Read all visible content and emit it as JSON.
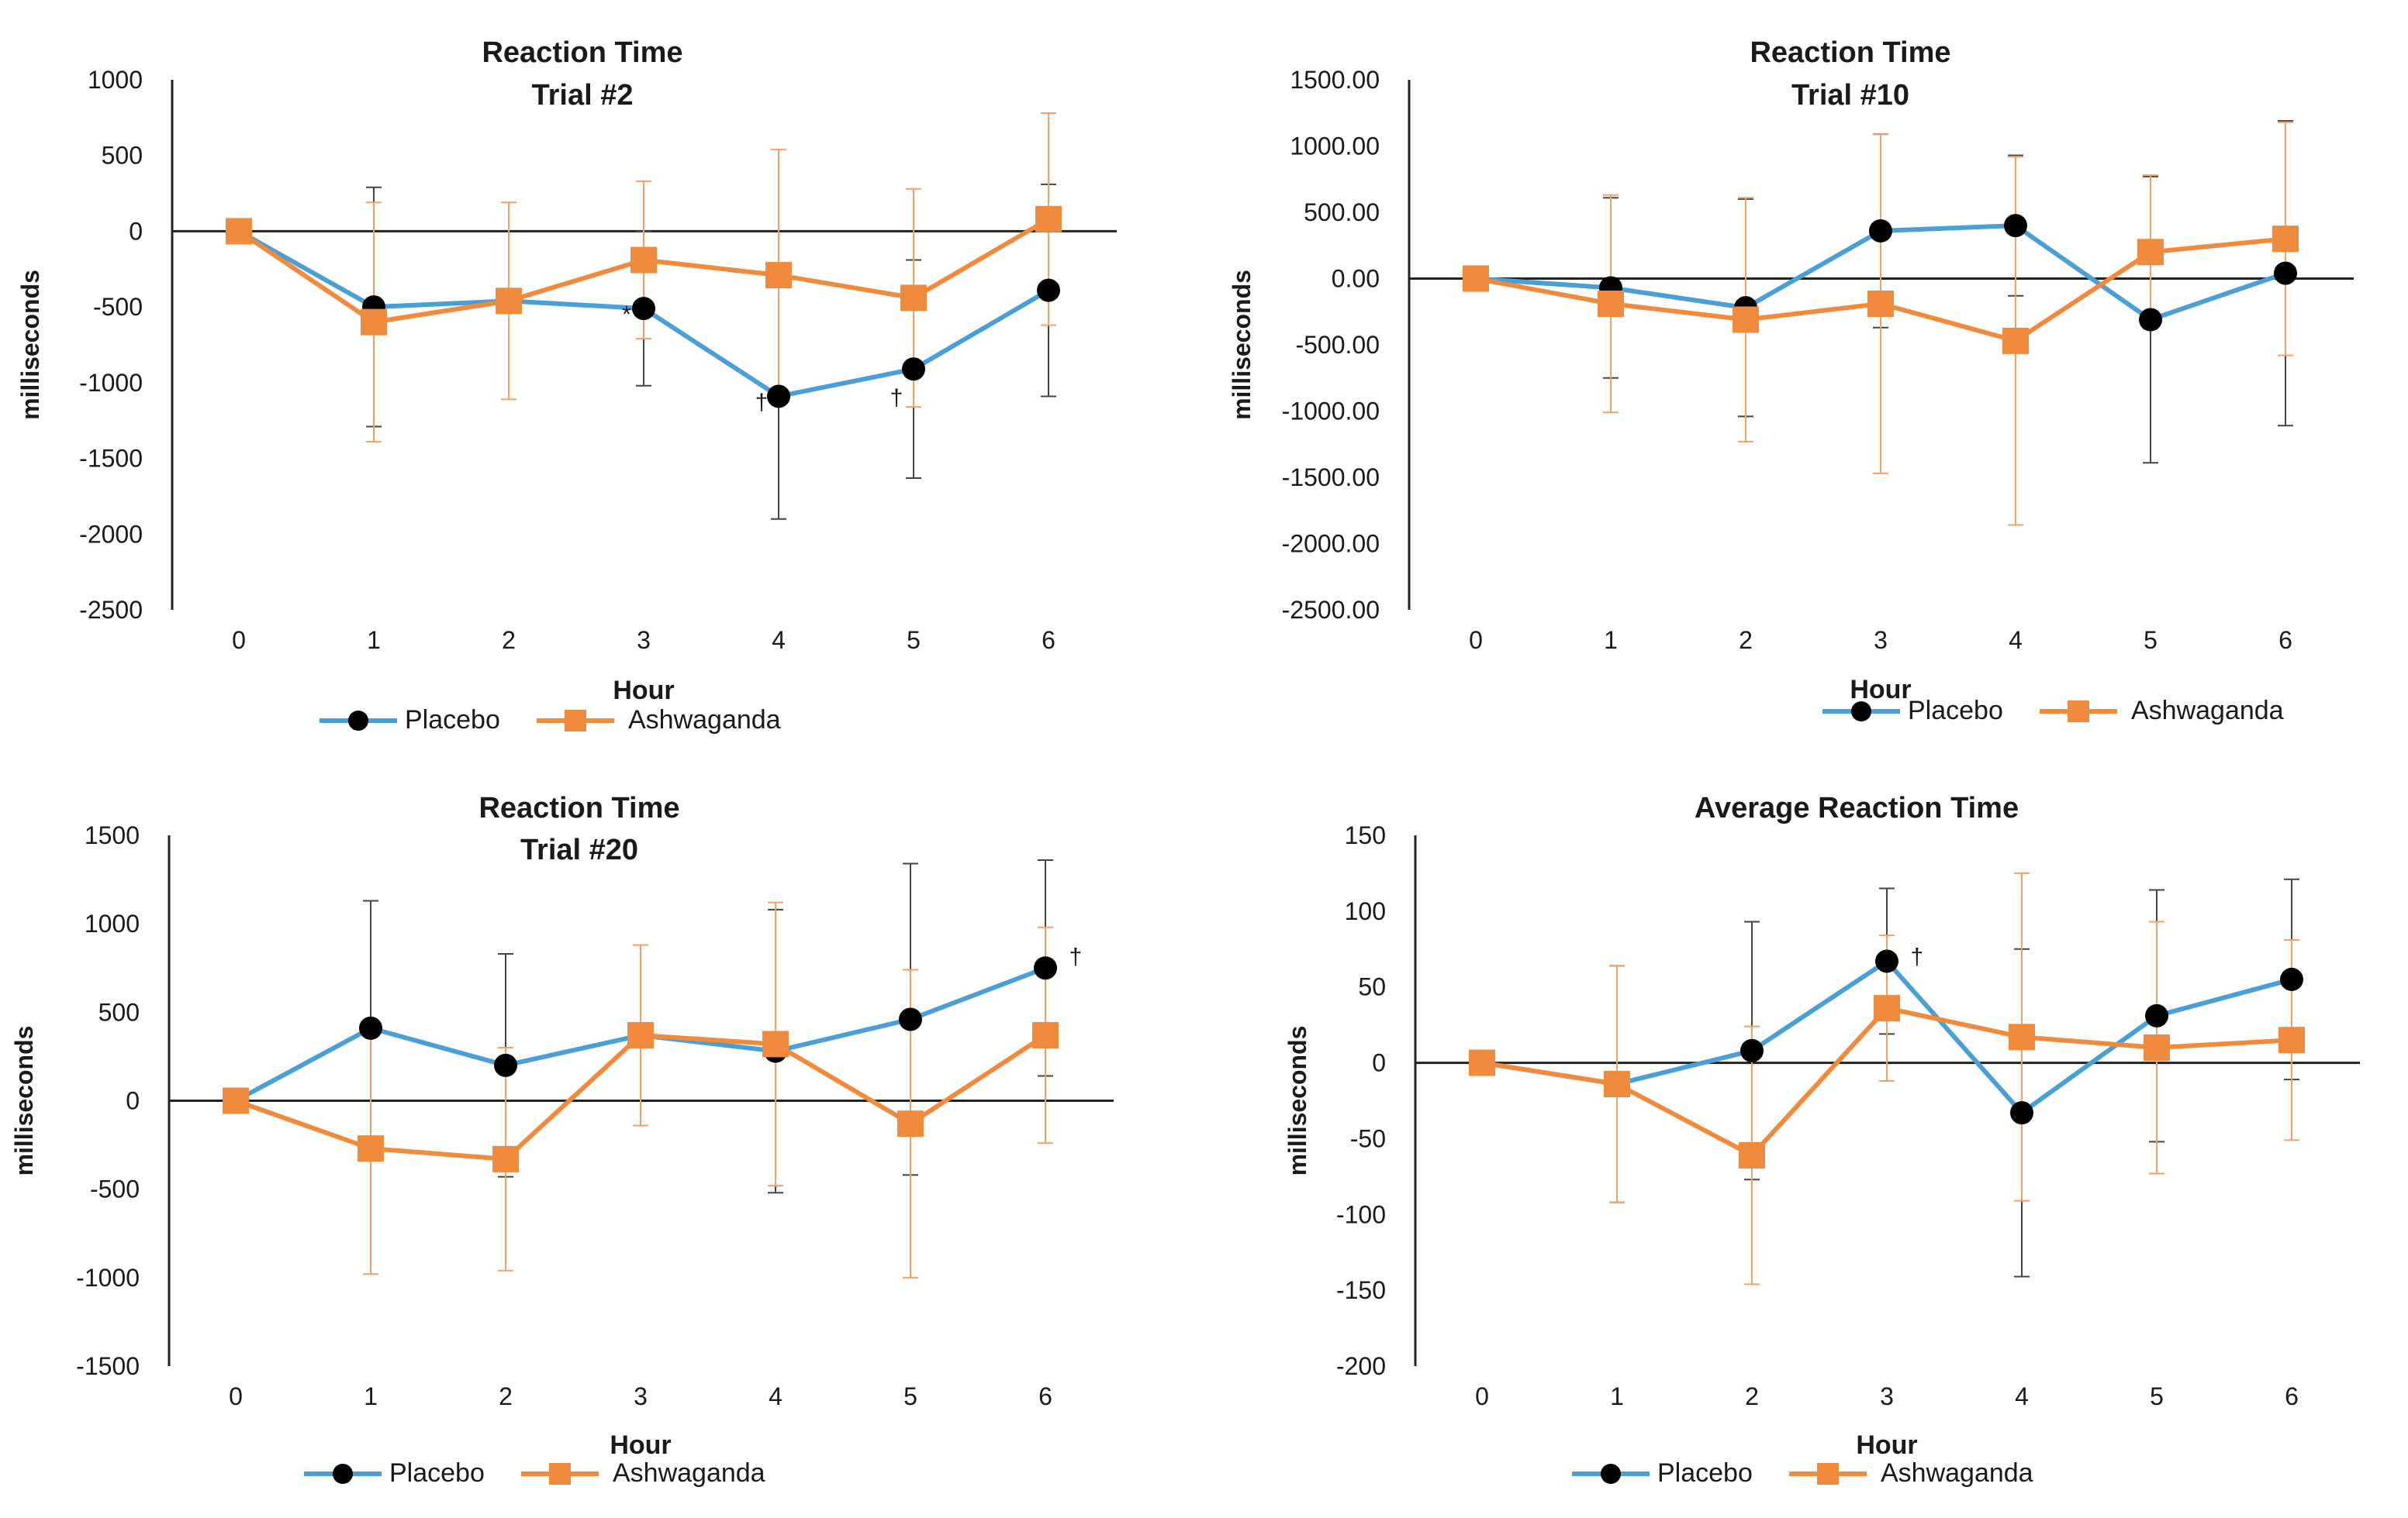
{
  "chart_data": [
    {
      "type": "line",
      "title": [
        "Reaction Time",
        "Trial #2"
      ],
      "xlabel": "Hour",
      "ylabel": "milliseconds",
      "x": [
        0,
        1,
        2,
        3,
        4,
        5,
        6
      ],
      "ylim": [
        -2500,
        1000
      ],
      "yticks": [
        1000,
        500,
        0,
        -500,
        -1000,
        -1500,
        -2000,
        -2500
      ],
      "ytick_labels": [
        "1000",
        "500",
        "0",
        "-500",
        "-1000",
        "-1500",
        "-2000",
        "-2500"
      ],
      "series": [
        {
          "name": "Placebo",
          "color": "#4a9fd5",
          "marker": "circle",
          "values": [
            0,
            -500,
            -460,
            -510,
            -1090,
            -910,
            -390
          ],
          "error": [
            0,
            790,
            0,
            510,
            810,
            720,
            700
          ]
        },
        {
          "name": "Ashwaganda",
          "color": "#f08a3c",
          "marker": "square",
          "values": [
            0,
            -600,
            -460,
            -190,
            -290,
            -440,
            80
          ],
          "error": [
            0,
            790,
            650,
            520,
            830,
            720,
            700
          ]
        }
      ],
      "annotations": [
        {
          "text": "*",
          "x": 3,
          "y": -600
        },
        {
          "text": "†",
          "x": 4,
          "y": -1180
        },
        {
          "text": "†",
          "x": 5,
          "y": -1150
        }
      ]
    },
    {
      "type": "line",
      "title": [
        "Reaction Time",
        "Trial #10"
      ],
      "xlabel": "Hour",
      "ylabel": "milliseconds",
      "x": [
        0,
        1,
        2,
        3,
        4,
        5,
        6
      ],
      "ylim": [
        -2500,
        1500
      ],
      "yticks": [
        1500,
        1000,
        500,
        0,
        -500,
        -1000,
        -1500,
        -2000,
        -2500
      ],
      "ytick_labels": [
        "1500.00",
        "1000.00",
        "500.00",
        "0.00",
        "-500.00",
        "-1000.00",
        "-1500.00",
        "-2000.00",
        "-2500.00"
      ],
      "series": [
        {
          "name": "Placebo",
          "color": "#4a9fd5",
          "marker": "circle",
          "values": [
            0,
            -70,
            -220,
            360,
            400,
            -310,
            40
          ],
          "error": [
            0,
            680,
            820,
            730,
            530,
            1080,
            1150
          ]
        },
        {
          "name": "Ashwaganda",
          "color": "#f08a3c",
          "marker": "square",
          "values": [
            0,
            -190,
            -310,
            -190,
            -470,
            200,
            300
          ],
          "error": [
            0,
            820,
            920,
            1280,
            1390,
            580,
            880
          ]
        }
      ],
      "annotations": []
    },
    {
      "type": "line",
      "title": [
        "Reaction Time",
        "Trial #20"
      ],
      "xlabel": "Hour",
      "ylabel": "milliseconds",
      "x": [
        0,
        1,
        2,
        3,
        4,
        5,
        6
      ],
      "ylim": [
        -1500,
        1500
      ],
      "yticks": [
        1500,
        1000,
        500,
        0,
        -500,
        -1000,
        -1500
      ],
      "ytick_labels": [
        "1500",
        "1000",
        "500",
        "0",
        "-500",
        "-1000",
        "-1500"
      ],
      "series": [
        {
          "name": "Placebo",
          "color": "#4a9fd5",
          "marker": "circle",
          "values": [
            0,
            410,
            200,
            370,
            280,
            460,
            750
          ],
          "error": [
            0,
            720,
            630,
            0,
            800,
            880,
            610
          ]
        },
        {
          "name": "Ashwaganda",
          "color": "#f08a3c",
          "marker": "square",
          "values": [
            0,
            -270,
            -330,
            370,
            320,
            -130,
            370
          ],
          "error": [
            0,
            710,
            630,
            510,
            800,
            870,
            610
          ]
        }
      ],
      "annotations": [
        {
          "text": "†",
          "x": 6.35,
          "y": 770
        }
      ]
    },
    {
      "type": "line",
      "title": [
        "Average Reaction Time"
      ],
      "xlabel": "Hour",
      "ylabel": "milliseconds",
      "x": [
        0,
        1,
        2,
        3,
        4,
        5,
        6
      ],
      "ylim": [
        -200,
        150
      ],
      "yticks": [
        150,
        100,
        50,
        0,
        -50,
        -100,
        -150,
        -200
      ],
      "ytick_labels": [
        "150",
        "100",
        "50",
        "0",
        "-50",
        "-100",
        "-150",
        "-200"
      ],
      "series": [
        {
          "name": "Placebo",
          "color": "#4a9fd5",
          "marker": "circle",
          "values": [
            0,
            -14,
            8,
            67,
            -33,
            31,
            55
          ],
          "error": [
            0,
            78,
            85,
            48,
            108,
            83,
            66
          ]
        },
        {
          "name": "Ashwaganda",
          "color": "#f08a3c",
          "marker": "square",
          "values": [
            0,
            -14,
            -61,
            36,
            17,
            10,
            15
          ],
          "error": [
            0,
            78,
            85,
            48,
            108,
            83,
            66
          ]
        }
      ],
      "annotations": [
        {
          "text": "†",
          "x": 3.35,
          "y": 65
        }
      ]
    }
  ]
}
